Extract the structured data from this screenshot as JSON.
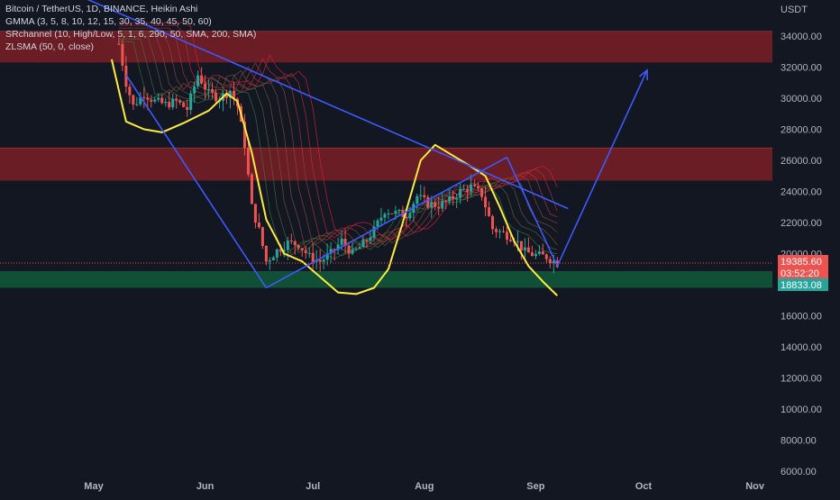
{
  "legend": {
    "title": "Bitcoin / TetherUS, 1D, BINANCE, Heikin Ashi",
    "gmma": "GMMA (3, 5, 8, 10, 12, 15, 30, 35, 40, 45, 50, 60)",
    "srchannel": "SRchannel (10, High/Low, 5, 1, 6, 290, 50, SMA, 200, SMA)",
    "zlsma": "ZLSMA (50, 0, close)"
  },
  "price_axis": {
    "currency": "USDT",
    "ticks": [
      6000,
      8000,
      10000,
      12000,
      14000,
      16000,
      18000,
      20000,
      22000,
      24000,
      26000,
      28000,
      30000,
      32000,
      34000
    ],
    "labels": [
      "6000.00",
      "8000.00",
      "10000.00",
      "12000.00",
      "14000.00",
      "16000.00",
      "18000.00",
      "20000.00",
      "22000.00",
      "24000.00",
      "26000.00",
      "28000.00",
      "30000.00",
      "32000.00",
      "34000.00"
    ]
  },
  "badges": {
    "last_price": "19385.60",
    "countdown": "03:52:20",
    "support_price": "18833.08"
  },
  "colors": {
    "background": "#131722",
    "up": "#26a69a",
    "down": "#ef5350",
    "zlsma": "#ffeb3b",
    "trendline": "#3d5afe",
    "resistance_zone": "#7a1f24",
    "support_zone": "#0f5a3a"
  },
  "chart_data": {
    "type": "candlestick",
    "title": "Bitcoin / TetherUS, 1D, BINANCE, Heikin Ashi",
    "x_ticks": [
      {
        "date": "2022-05-01",
        "label": "May"
      },
      {
        "date": "2022-06-01",
        "label": "Jun"
      },
      {
        "date": "2022-07-01",
        "label": "Jul"
      },
      {
        "date": "2022-08-01",
        "label": "Aug"
      },
      {
        "date": "2022-09-01",
        "label": "Sep"
      },
      {
        "date": "2022-10-01",
        "label": "Oct"
      },
      {
        "date": "2022-11-01",
        "label": "Nov"
      }
    ],
    "ylim": [
      5500,
      36000
    ],
    "y_scale": "linear",
    "grid": false,
    "series": [
      {
        "name": "Heikin Ashi",
        "points": [
          {
            "date": "2022-05-08",
            "close": 33500
          },
          {
            "date": "2022-05-10",
            "close": 31000
          },
          {
            "date": "2022-05-12",
            "close": 29500
          },
          {
            "date": "2022-05-15",
            "close": 30300
          },
          {
            "date": "2022-05-18",
            "close": 29800
          },
          {
            "date": "2022-05-21",
            "close": 29600
          },
          {
            "date": "2022-05-24",
            "close": 29800
          },
          {
            "date": "2022-05-27",
            "close": 29300
          },
          {
            "date": "2022-05-30",
            "close": 31500
          },
          {
            "date": "2022-06-02",
            "close": 30300
          },
          {
            "date": "2022-06-05",
            "close": 30000
          },
          {
            "date": "2022-06-08",
            "close": 30500
          },
          {
            "date": "2022-06-10",
            "close": 29500
          },
          {
            "date": "2022-06-12",
            "close": 27000
          },
          {
            "date": "2022-06-14",
            "close": 23000
          },
          {
            "date": "2022-06-16",
            "close": 21500
          },
          {
            "date": "2022-06-18",
            "close": 19500
          },
          {
            "date": "2022-06-21",
            "close": 20200
          },
          {
            "date": "2022-06-24",
            "close": 20700
          },
          {
            "date": "2022-06-27",
            "close": 20600
          },
          {
            "date": "2022-06-30",
            "close": 19800
          },
          {
            "date": "2022-07-03",
            "close": 19500
          },
          {
            "date": "2022-07-06",
            "close": 20000
          },
          {
            "date": "2022-07-09",
            "close": 20800
          },
          {
            "date": "2022-07-12",
            "close": 20000
          },
          {
            "date": "2022-07-15",
            "close": 20600
          },
          {
            "date": "2022-07-18",
            "close": 21500
          },
          {
            "date": "2022-07-21",
            "close": 22800
          },
          {
            "date": "2022-07-24",
            "close": 22600
          },
          {
            "date": "2022-07-27",
            "close": 22500
          },
          {
            "date": "2022-07-30",
            "close": 23700
          },
          {
            "date": "2022-08-02",
            "close": 23200
          },
          {
            "date": "2022-08-05",
            "close": 23100
          },
          {
            "date": "2022-08-08",
            "close": 23400
          },
          {
            "date": "2022-08-11",
            "close": 24000
          },
          {
            "date": "2022-08-14",
            "close": 24300
          },
          {
            "date": "2022-08-17",
            "close": 23800
          },
          {
            "date": "2022-08-20",
            "close": 21600
          },
          {
            "date": "2022-08-23",
            "close": 21300
          },
          {
            "date": "2022-08-26",
            "close": 21000
          },
          {
            "date": "2022-08-29",
            "close": 20100
          },
          {
            "date": "2022-09-01",
            "close": 19900
          },
          {
            "date": "2022-09-04",
            "close": 19800
          },
          {
            "date": "2022-09-07",
            "close": 19385.6
          }
        ]
      },
      {
        "name": "ZLSMA",
        "points": [
          {
            "date": "2022-05-06",
            "value": 32500
          },
          {
            "date": "2022-05-10",
            "value": 28500
          },
          {
            "date": "2022-05-15",
            "value": 28000
          },
          {
            "date": "2022-05-20",
            "value": 27800
          },
          {
            "date": "2022-05-26",
            "value": 28400
          },
          {
            "date": "2022-06-02",
            "value": 29200
          },
          {
            "date": "2022-06-07",
            "value": 30300
          },
          {
            "date": "2022-06-10",
            "value": 29800
          },
          {
            "date": "2022-06-14",
            "value": 26500
          },
          {
            "date": "2022-06-18",
            "value": 22200
          },
          {
            "date": "2022-06-23",
            "value": 20000
          },
          {
            "date": "2022-06-28",
            "value": 19500
          },
          {
            "date": "2022-07-03",
            "value": 18500
          },
          {
            "date": "2022-07-08",
            "value": 17500
          },
          {
            "date": "2022-07-13",
            "value": 17400
          },
          {
            "date": "2022-07-18",
            "value": 17800
          },
          {
            "date": "2022-07-22",
            "value": 19000
          },
          {
            "date": "2022-07-26",
            "value": 22000
          },
          {
            "date": "2022-07-31",
            "value": 26000
          },
          {
            "date": "2022-08-04",
            "value": 27000
          },
          {
            "date": "2022-08-09",
            "value": 26300
          },
          {
            "date": "2022-08-14",
            "value": 25600
          },
          {
            "date": "2022-08-18",
            "value": 25000
          },
          {
            "date": "2022-08-22",
            "value": 23000
          },
          {
            "date": "2022-08-26",
            "value": 20800
          },
          {
            "date": "2022-08-30",
            "value": 19200
          },
          {
            "date": "2022-09-03",
            "value": 18200
          },
          {
            "date": "2022-09-07",
            "value": 17300
          }
        ]
      }
    ],
    "zones": [
      {
        "kind": "resistance",
        "from": 32300,
        "to": 34300
      },
      {
        "kind": "resistance",
        "from": 24700,
        "to": 26800
      },
      {
        "kind": "support",
        "from": 17800,
        "to": 18833.08
      }
    ],
    "trendlines": [
      {
        "from": {
          "date": "2022-04-08",
          "value": 38500
        },
        "to": {
          "date": "2022-09-10",
          "value": 22900
        }
      },
      {
        "from": {
          "date": "2022-05-10",
          "value": 31500
        },
        "to": {
          "date": "2022-06-18",
          "value": 17800
        }
      },
      {
        "from": {
          "date": "2022-06-18",
          "value": 17800
        },
        "to": {
          "date": "2022-08-24",
          "value": 26200
        }
      },
      {
        "from": {
          "date": "2022-08-24",
          "value": 26200
        },
        "to": {
          "date": "2022-09-07",
          "value": 19200
        }
      },
      {
        "from": {
          "date": "2022-09-07",
          "value": 19200
        },
        "to": {
          "date": "2022-10-02",
          "value": 31800
        }
      }
    ]
  }
}
